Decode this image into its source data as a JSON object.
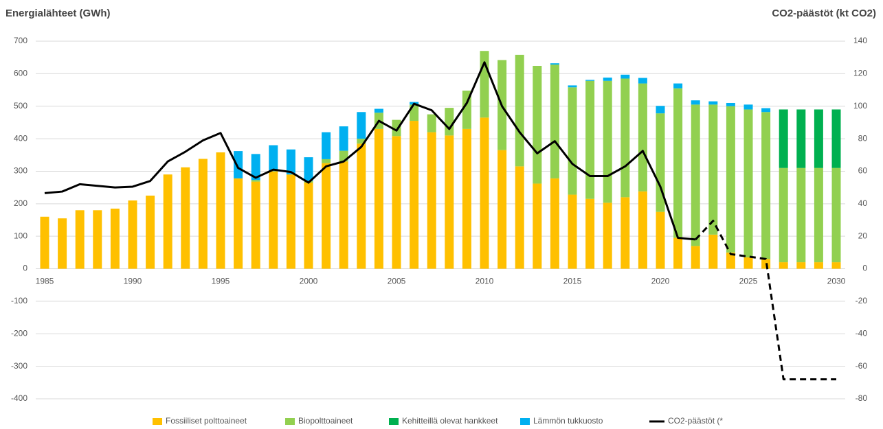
{
  "chart_data": {
    "type": "bar-line",
    "y_label": "Energialähteet (GWh)",
    "y2_label": "CO2-päästöt (kt CO2)",
    "categories": [
      "1985",
      null,
      null,
      null,
      null,
      "1990",
      null,
      null,
      null,
      null,
      "1995",
      null,
      null,
      null,
      null,
      "2000",
      null,
      null,
      null,
      null,
      "2005",
      null,
      null,
      null,
      null,
      "2010",
      null,
      null,
      null,
      null,
      "2015",
      null,
      null,
      null,
      null,
      "2020",
      null,
      null,
      null,
      null,
      "2025",
      null,
      null,
      null,
      null,
      "2030"
    ],
    "ylim": [
      -400,
      700
    ],
    "yticks": [
      -400,
      -300,
      -200,
      -100,
      0,
      100,
      200,
      300,
      400,
      500,
      600,
      700
    ],
    "y2lim": [
      -80,
      140
    ],
    "y2ticks": [
      -80,
      -60,
      -40,
      -20,
      0,
      20,
      40,
      60,
      80,
      100,
      120,
      140
    ],
    "grid": true,
    "legend": "bottom",
    "series": [
      {
        "name": "Fossiiliset polttoaineet",
        "color": "#ffc000",
        "kind": "bar",
        "values": [
          160,
          155,
          180,
          180,
          185,
          210,
          225,
          290,
          312,
          338,
          358,
          278,
          268,
          300,
          290,
          265,
          325,
          330,
          385,
          430,
          408,
          455,
          420,
          410,
          430,
          465,
          365,
          315,
          262,
          278,
          228,
          215,
          203,
          220,
          238,
          175,
          95,
          70,
          105,
          50,
          35,
          30,
          20,
          20,
          20,
          20
        ]
      },
      {
        "name": "Biopolttoaineet",
        "color": "#92d050",
        "kind": "bar",
        "values": [
          0,
          0,
          0,
          0,
          0,
          0,
          0,
          0,
          0,
          0,
          0,
          0,
          5,
          0,
          0,
          5,
          12,
          33,
          15,
          50,
          50,
          50,
          55,
          85,
          118,
          205,
          277,
          343,
          362,
          350,
          330,
          363,
          375,
          365,
          332,
          303,
          460,
          435,
          400,
          450,
          455,
          452,
          290,
          290,
          290,
          290
        ]
      },
      {
        "name": "Kehitteillä olevat hankkeet",
        "color": "#00b050",
        "kind": "bar",
        "values": [
          0,
          0,
          0,
          0,
          0,
          0,
          0,
          0,
          0,
          0,
          0,
          0,
          0,
          0,
          0,
          0,
          0,
          0,
          0,
          0,
          0,
          0,
          0,
          0,
          0,
          0,
          0,
          0,
          0,
          0,
          0,
          0,
          0,
          0,
          0,
          0,
          0,
          0,
          0,
          0,
          0,
          0,
          180,
          180,
          180,
          180
        ]
      },
      {
        "name": "Lämmön tukkuosto",
        "color": "#00b0f0",
        "kind": "bar",
        "values": [
          0,
          0,
          0,
          0,
          0,
          0,
          0,
          0,
          0,
          0,
          0,
          84,
          80,
          80,
          77,
          73,
          83,
          75,
          82,
          12,
          0,
          8,
          0,
          0,
          0,
          0,
          0,
          0,
          0,
          4,
          6,
          3,
          10,
          12,
          17,
          23,
          15,
          13,
          10,
          10,
          15,
          12,
          0,
          0,
          0,
          0
        ]
      },
      {
        "name": "CO2-päästöt (*",
        "color": "#000000",
        "kind": "line",
        "axis": "y2",
        "dash_from": 37,
        "values": [
          46.5,
          47.5,
          52,
          51,
          50,
          50.5,
          54,
          66,
          72,
          79,
          83.5,
          62,
          56,
          61,
          59.5,
          53,
          63,
          66,
          75,
          91,
          85,
          101.5,
          97.5,
          86,
          102,
          127,
          100,
          84,
          71,
          78.5,
          64.5,
          57,
          57,
          63,
          72.5,
          50.5,
          19,
          18,
          29.5,
          9,
          7.5,
          6,
          -68,
          -68,
          -68,
          -68
        ]
      }
    ]
  }
}
